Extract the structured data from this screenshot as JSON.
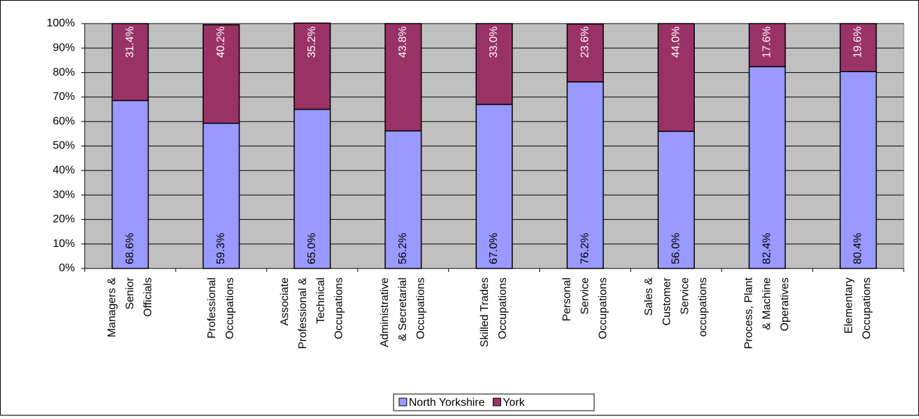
{
  "chart_data": {
    "type": "stacked_bar_percent",
    "categories": [
      [
        "Managers &",
        "Senior",
        "Officials"
      ],
      [
        "Professional",
        "Occupations"
      ],
      [
        "Associate",
        "Professional &",
        "Technical",
        "Occupations"
      ],
      [
        "Administrative",
        "& Secretarial",
        "Occupations"
      ],
      [
        "Skilled Trades",
        "Occupations"
      ],
      [
        "Personal",
        "Service",
        "Occupations"
      ],
      [
        "Sales &",
        "Customer",
        "Service",
        "occupations"
      ],
      [
        "Process, Plant",
        "& Machine",
        "Operatives"
      ],
      [
        "Elementary",
        "Occupations"
      ]
    ],
    "series": [
      {
        "name": "North Yorkshire",
        "color": "#9999ff",
        "values": [
          68.6,
          59.3,
          65.0,
          56.2,
          67.0,
          76.2,
          56.0,
          82.4,
          80.4
        ],
        "value_labels": [
          "68.6%",
          "59.3%",
          "65.0%",
          "56.2%",
          "67.0%",
          "76.2%",
          "56.0%",
          "82.4%",
          "80.4%"
        ]
      },
      {
        "name": "York",
        "color": "#993366",
        "values": [
          31.4,
          40.2,
          35.2,
          43.8,
          33.0,
          23.6,
          44.0,
          17.6,
          19.6
        ],
        "value_labels": [
          "31.4%",
          "40.2%",
          "35.2%",
          "43.8%",
          "33.0%",
          "23.6%",
          "44.0%",
          "17.6%",
          "19.6%"
        ]
      }
    ],
    "ylim": [
      0,
      100
    ],
    "yticks": [
      {
        "value": 0,
        "label": "0%"
      },
      {
        "value": 10,
        "label": "10%"
      },
      {
        "value": 20,
        "label": "20%"
      },
      {
        "value": 30,
        "label": "30%"
      },
      {
        "value": 40,
        "label": "40%"
      },
      {
        "value": 50,
        "label": "50%"
      },
      {
        "value": 60,
        "label": "60%"
      },
      {
        "value": 70,
        "label": "70%"
      },
      {
        "value": 80,
        "label": "80%"
      },
      {
        "value": 90,
        "label": "90%"
      },
      {
        "value": 100,
        "label": "100%"
      }
    ],
    "grid": true,
    "legend": "bottom",
    "plot_background": "#c0c0c0"
  }
}
